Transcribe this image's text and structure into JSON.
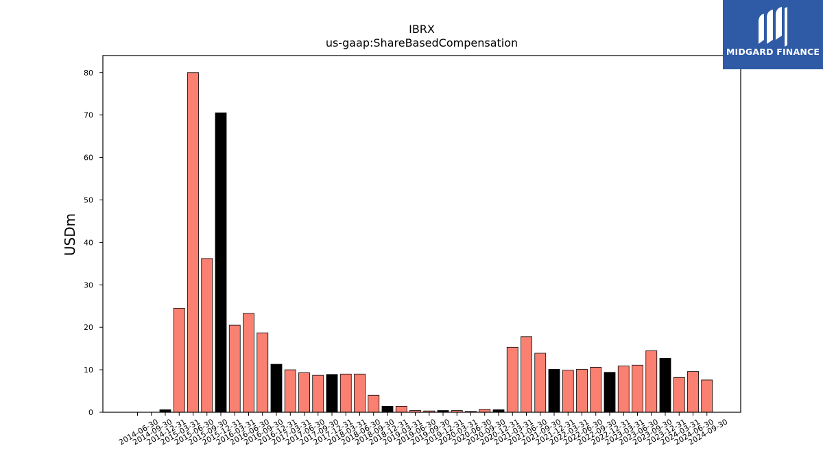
{
  "chart_data": {
    "type": "bar",
    "title": "IBRX",
    "subtitle": "us-gaap:ShareBasedCompensation",
    "ylabel": "USDm",
    "xlabel": "",
    "ylim": [
      0,
      84
    ],
    "yticks": [
      0,
      10,
      20,
      30,
      40,
      50,
      60,
      70,
      80
    ],
    "grid": false,
    "colors": {
      "quarter": "#fa8072",
      "annual": "#000000"
    },
    "categories": [
      "2014-06-30",
      "2014-09-30",
      "2014-12-31",
      "2015-03-31",
      "2015-06-30",
      "2015-09-30",
      "2015-12-31",
      "2016-03-31",
      "2016-06-30",
      "2016-09-30",
      "2016-12-31",
      "2017-03-31",
      "2017-06-30",
      "2017-09-30",
      "2017-12-31",
      "2018-03-31",
      "2018-06-30",
      "2018-09-30",
      "2018-12-31",
      "2019-03-31",
      "2019-06-30",
      "2019-09-30",
      "2019-12-31",
      "2020-03-31",
      "2020-06-30",
      "2020-09-30",
      "2020-12-31",
      "2021-03-31",
      "2021-06-30",
      "2021-09-30",
      "2021-12-31",
      "2022-03-31",
      "2022-06-30",
      "2022-09-30",
      "2022-12-31",
      "2023-03-31",
      "2023-06-30",
      "2023-09-30",
      "2023-12-31",
      "2024-03-31",
      "2024-06-30",
      "2024-09-30"
    ],
    "values": [
      0,
      0,
      0.6,
      24.5,
      80,
      36.2,
      70.5,
      20.5,
      23.3,
      18.7,
      11.3,
      10,
      9.3,
      8.7,
      8.9,
      9,
      9,
      4,
      1.4,
      1.4,
      0.4,
      0.3,
      0.4,
      0.4,
      0.2,
      0.7,
      0.6,
      15.3,
      17.8,
      13.9,
      10.1,
      9.9,
      10.1,
      10.6,
      9.4,
      10.9,
      11.1,
      14.5,
      12.7,
      8.2,
      9.6,
      7.6
    ],
    "annual": [
      false,
      false,
      true,
      false,
      false,
      false,
      true,
      false,
      false,
      false,
      true,
      false,
      false,
      false,
      true,
      false,
      false,
      false,
      true,
      false,
      false,
      false,
      true,
      false,
      false,
      false,
      true,
      false,
      false,
      false,
      true,
      false,
      false,
      false,
      true,
      false,
      false,
      false,
      true,
      false,
      false,
      false
    ]
  },
  "logo": {
    "text": "MIDGARD FINANCE"
  }
}
